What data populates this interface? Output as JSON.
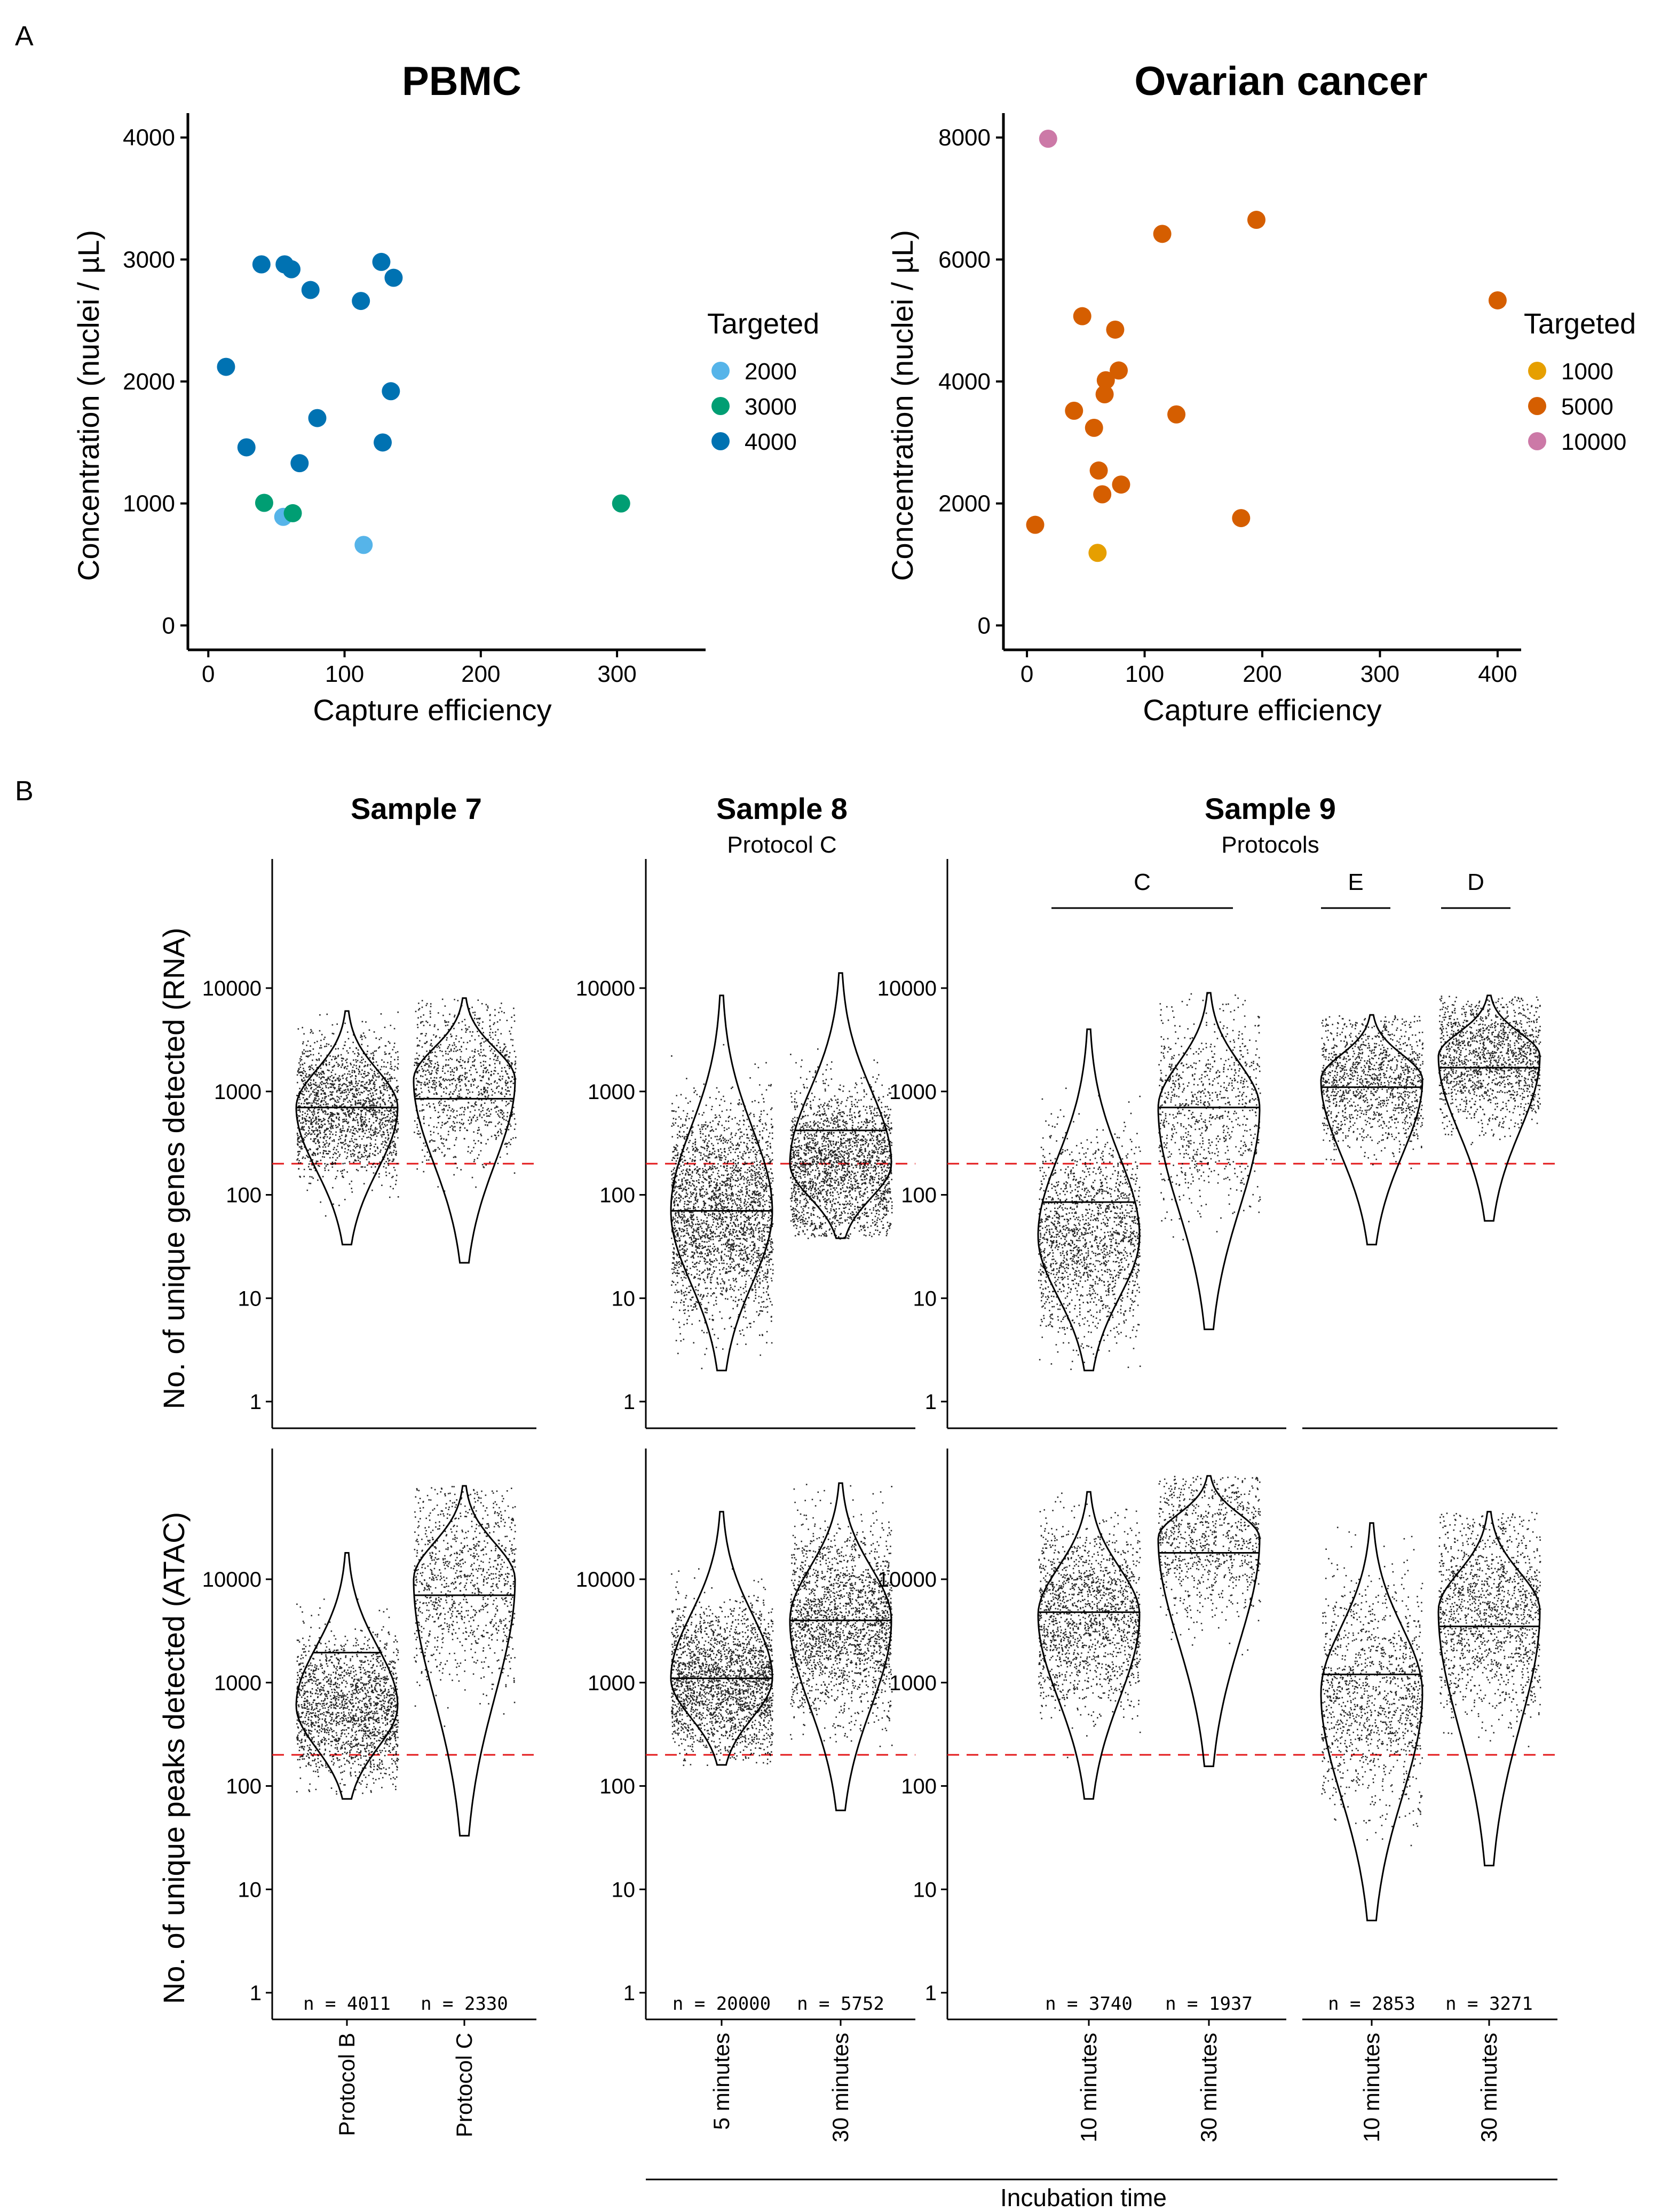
{
  "panel_labels": {
    "a": "A",
    "b": "B"
  },
  "chart_data": [
    {
      "type": "scatter",
      "title": "PBMC",
      "xlabel": "Capture efficiency",
      "ylabel": "Concentration (nuclei / µL)",
      "xlim": [
        -15,
        365
      ],
      "ylim": [
        -200,
        4200
      ],
      "xticks": [
        0,
        100,
        200,
        300
      ],
      "yticks": [
        0,
        1000,
        2000,
        3000,
        4000
      ],
      "legend": {
        "title": "Targeted",
        "position": "right",
        "entries": [
          {
            "label": "2000",
            "color": "#56B4E9"
          },
          {
            "label": "3000",
            "color": "#009E73"
          },
          {
            "label": "4000",
            "color": "#0072B2"
          }
        ]
      },
      "points": [
        {
          "x": 55,
          "y": 890,
          "group": "2000"
        },
        {
          "x": 114,
          "y": 660,
          "group": "2000"
        },
        {
          "x": 41,
          "y": 1005,
          "group": "3000"
        },
        {
          "x": 62,
          "y": 920,
          "group": "3000"
        },
        {
          "x": 303,
          "y": 1000,
          "group": "3000"
        },
        {
          "x": 39,
          "y": 2960,
          "group": "4000"
        },
        {
          "x": 56,
          "y": 2960,
          "group": "4000"
        },
        {
          "x": 61,
          "y": 2920,
          "group": "4000"
        },
        {
          "x": 75,
          "y": 2750,
          "group": "4000"
        },
        {
          "x": 112,
          "y": 2660,
          "group": "4000"
        },
        {
          "x": 127,
          "y": 2980,
          "group": "4000"
        },
        {
          "x": 136,
          "y": 2850,
          "group": "4000"
        },
        {
          "x": 13,
          "y": 2120,
          "group": "4000"
        },
        {
          "x": 134,
          "y": 1920,
          "group": "4000"
        },
        {
          "x": 80,
          "y": 1700,
          "group": "4000"
        },
        {
          "x": 28,
          "y": 1460,
          "group": "4000"
        },
        {
          "x": 128,
          "y": 1500,
          "group": "4000"
        },
        {
          "x": 67,
          "y": 1330,
          "group": "4000"
        }
      ]
    },
    {
      "type": "scatter",
      "title": "Ovarian cancer",
      "xlabel": "Capture efficiency",
      "ylabel": "Concentration (nuclei / µL)",
      "xlim": [
        -20,
        420
      ],
      "ylim": [
        -400,
        8400
      ],
      "xticks": [
        0,
        100,
        200,
        300,
        400
      ],
      "yticks": [
        0,
        2000,
        4000,
        6000,
        8000
      ],
      "legend": {
        "title": "Targeted",
        "position": "right",
        "entries": [
          {
            "label": "1000",
            "color": "#E69F00"
          },
          {
            "label": "5000",
            "color": "#D55E00"
          },
          {
            "label": "10000",
            "color": "#CC79A7"
          }
        ]
      },
      "points": [
        {
          "x": 60,
          "y": 1190,
          "group": "1000"
        },
        {
          "x": 18,
          "y": 7980,
          "group": "10000"
        },
        {
          "x": 195,
          "y": 6650,
          "group": "5000"
        },
        {
          "x": 115,
          "y": 6420,
          "group": "5000"
        },
        {
          "x": 400,
          "y": 5330,
          "group": "5000"
        },
        {
          "x": 47,
          "y": 5070,
          "group": "5000"
        },
        {
          "x": 75,
          "y": 4850,
          "group": "5000"
        },
        {
          "x": 78,
          "y": 4180,
          "group": "5000"
        },
        {
          "x": 67,
          "y": 4020,
          "group": "5000"
        },
        {
          "x": 66,
          "y": 3790,
          "group": "5000"
        },
        {
          "x": 40,
          "y": 3520,
          "group": "5000"
        },
        {
          "x": 127,
          "y": 3460,
          "group": "5000"
        },
        {
          "x": 57,
          "y": 3240,
          "group": "5000"
        },
        {
          "x": 61,
          "y": 2540,
          "group": "5000"
        },
        {
          "x": 80,
          "y": 2310,
          "group": "5000"
        },
        {
          "x": 64,
          "y": 2150,
          "group": "5000"
        },
        {
          "x": 182,
          "y": 1760,
          "group": "5000"
        },
        {
          "x": 7,
          "y": 1650,
          "group": "5000"
        }
      ]
    },
    {
      "type": "violin",
      "scale": "log10",
      "row_labels": [
        "No. of unique genes detected (RNA)",
        "No. of unique peaks detected (ATAC)"
      ],
      "yticks": [
        "1",
        "10",
        "100",
        "1000",
        "10000"
      ],
      "threshold": 200,
      "x_axis_group_label": "Incubation time",
      "facets": [
        {
          "title": "Sample 7",
          "subtitle": "",
          "groups": [
            {
              "label": "Protocol B",
              "n": "n = 4011",
              "rna": {
                "min": 33,
                "median": 700,
                "max": 6000,
                "mode": 700
              },
              "atac": {
                "min": 75,
                "median": 1950,
                "max": 18000,
                "mode": 600
              }
            },
            {
              "label": "Protocol C",
              "n": "n = 2330",
              "rna": {
                "min": 22,
                "median": 850,
                "max": 8000,
                "mode": 1300
              },
              "atac": {
                "min": 33,
                "median": 7000,
                "max": 80000,
                "mode": 10000
              }
            }
          ]
        },
        {
          "title": "Sample 8",
          "subtitle": "Protocol C",
          "groups": [
            {
              "label": "5 minutes",
              "n": "n = 20000",
              "rna": {
                "min": 2,
                "median": 70,
                "max": 8500,
                "mode": 70
              },
              "atac": {
                "min": 160,
                "median": 1100,
                "max": 45000,
                "mode": 1100
              }
            },
            {
              "label": "30 minutes",
              "n": "n = 5752",
              "rna": {
                "min": 38,
                "median": 420,
                "max": 14000,
                "mode": 200
              },
              "atac": {
                "min": 58,
                "median": 4000,
                "max": 85000,
                "mode": 4000
              }
            }
          ]
        },
        {
          "title": "Sample 9",
          "subtitle": "Protocols",
          "protocol_brackets": [
            {
              "label": "C",
              "groups": [
                0,
                1
              ]
            },
            {
              "label": "E",
              "groups": [
                2
              ]
            },
            {
              "label": "D",
              "groups": [
                3
              ]
            }
          ],
          "groups": [
            {
              "label": "10 minutes",
              "n": "n = 3740",
              "rna": {
                "min": 2,
                "median": 85,
                "max": 4000,
                "mode": 40
              },
              "atac": {
                "min": 75,
                "median": 4800,
                "max": 70000,
                "mode": 4500
              }
            },
            {
              "label": "30 minutes",
              "n": "n = 1937",
              "rna": {
                "min": 5,
                "median": 700,
                "max": 9000,
                "mode": 700
              },
              "atac": {
                "min": 155,
                "median": 18000,
                "max": 100000,
                "mode": 25000
              }
            },
            {
              "label": "10 minutes",
              "n": "n = 2853",
              "rna": {
                "min": 33,
                "median": 1100,
                "max": 5500,
                "mode": 1300
              },
              "atac": {
                "min": 5,
                "median": 1200,
                "max": 35000,
                "mode": 800
              }
            },
            {
              "label": "30 minutes",
              "n": "n = 3271",
              "rna": {
                "min": 56,
                "median": 1700,
                "max": 8500,
                "mode": 2200
              },
              "atac": {
                "min": 17,
                "median": 3500,
                "max": 45000,
                "mode": 5000
              }
            }
          ]
        }
      ]
    }
  ]
}
